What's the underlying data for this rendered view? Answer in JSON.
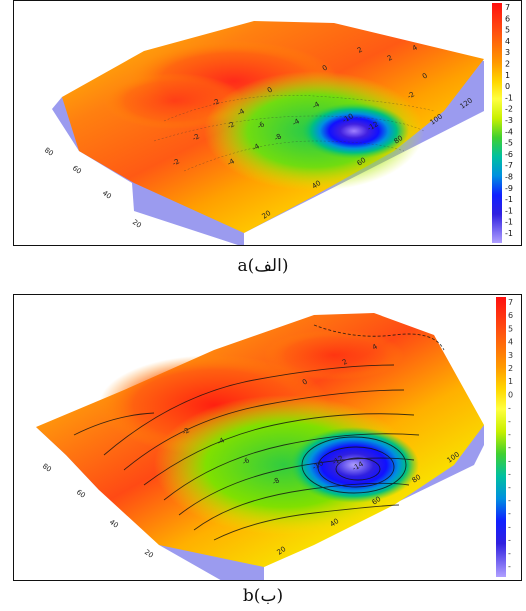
{
  "figure_a": {
    "caption_letter": "a",
    "caption_label": "(الف)",
    "colorbar_labels": [
      "7",
      "6",
      "5",
      "4",
      "3",
      "2",
      "1",
      "0",
      "-1",
      "-2",
      "-3",
      "-4",
      "-5",
      "-6",
      "-7",
      "-8",
      "-9",
      "-1",
      "-1",
      "-1",
      "-1"
    ],
    "axis_side_labels": [
      "80",
      "60",
      "40",
      "20"
    ],
    "axis_front_labels": [
      "20",
      "40",
      "60",
      "80",
      "100",
      "120"
    ],
    "contour_labels": [
      "-2",
      "-2",
      "-2",
      "-4",
      "-4",
      "0",
      "0",
      "2",
      "-4",
      "-4",
      "-10",
      "-12",
      "-2",
      "-4",
      "-6",
      "-8",
      "2",
      "4",
      "0",
      "-2"
    ]
  },
  "figure_b": {
    "caption_letter": "b",
    "caption_label": "(ب)",
    "colorbar_labels": [
      "7",
      "6",
      "5",
      "4",
      "3",
      "2",
      "1",
      "0",
      "-",
      "-",
      "-",
      "-",
      "-",
      "-",
      "-",
      "-",
      "-",
      "-",
      "-",
      "-",
      "-"
    ],
    "axis_side_labels": [
      "80",
      "60",
      "40",
      "20"
    ],
    "axis_front_labels": [
      "20",
      "40",
      "60",
      "80",
      "100"
    ],
    "contour_labels": [
      "-2",
      "-4",
      "-6",
      "-8",
      "-10",
      "-12",
      "-14",
      "0",
      "2",
      "4"
    ]
  },
  "colors": {
    "ramp": [
      "#ff1e1e",
      "#ff5a14",
      "#ff8c00",
      "#ffb400",
      "#ffd800",
      "#fff000",
      "#d4f000",
      "#7ee000",
      "#20d040",
      "#00c8a0",
      "#00a0e0",
      "#1e3cff",
      "#1010e0",
      "#5a50f0",
      "#a080ff",
      "#b8a0ff"
    ],
    "side_wall": "#9b9bef"
  }
}
